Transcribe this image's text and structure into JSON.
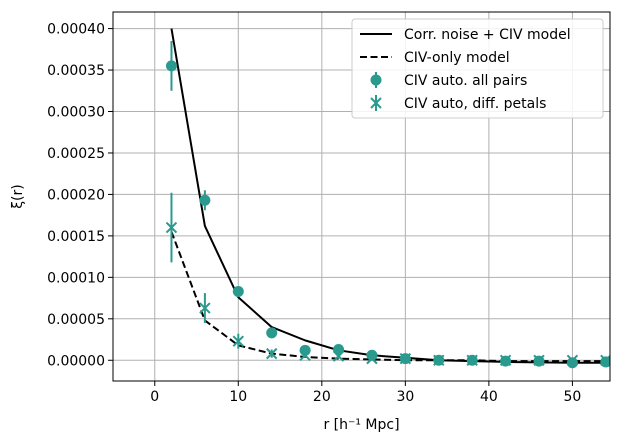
{
  "chart_data": {
    "type": "line",
    "title": "",
    "xlabel": "r [h⁻¹ Mpc]",
    "ylabel": "ξ(r)",
    "xlim": [
      -5,
      54.5
    ],
    "ylim": [
      -2.5e-05,
      0.00042
    ],
    "grid": true,
    "legend_position": "top-right",
    "x_ticks": [
      0,
      10,
      20,
      30,
      40,
      50
    ],
    "x_tick_labels": [
      "0",
      "10",
      "20",
      "30",
      "40",
      "50"
    ],
    "y_ticks": [
      0,
      5e-05,
      0.0001,
      0.00015,
      0.0002,
      0.00025,
      0.0003,
      0.00035,
      0.0004
    ],
    "y_tick_labels": [
      "0.00000",
      "0.00005",
      "0.00010",
      "0.00015",
      "0.00020",
      "0.00025",
      "0.00030",
      "0.00035",
      "0.00040"
    ],
    "colors": {
      "model": "#000000",
      "points": "#2a9a8e",
      "grid": "#b0b0b0"
    },
    "series": [
      {
        "name": "Corr. noise + CIV model",
        "kind": "line",
        "style": "solid",
        "x": [
          2,
          6,
          10,
          14,
          18,
          22,
          26,
          30,
          34,
          38,
          42,
          46,
          50,
          54
        ],
        "y": [
          0.0004,
          0.000162,
          7.6e-05,
          4e-05,
          2.4e-05,
          1.2e-05,
          6e-06,
          3e-06,
          0.0,
          -1e-06,
          -2e-06,
          -2.5e-06,
          -3e-06,
          -3e-06
        ]
      },
      {
        "name": "CIV-only model",
        "kind": "line",
        "style": "dashed",
        "x": [
          2,
          6,
          10,
          14,
          18,
          22,
          26,
          30,
          34,
          38,
          42,
          46,
          50,
          54
        ],
        "y": [
          0.000155,
          4.8e-05,
          1.8e-05,
          8e-06,
          4e-06,
          2e-06,
          1e-06,
          0.0,
          0.0,
          0.0,
          -1e-06,
          -1e-06,
          -1e-06,
          -1e-06
        ]
      },
      {
        "name": "CIV auto. all pairs",
        "kind": "errorbar",
        "marker": "circle",
        "x": [
          2,
          6,
          10,
          14,
          18,
          22,
          26,
          30,
          34,
          38,
          42,
          46,
          50,
          54
        ],
        "y": [
          0.000355,
          0.000193,
          8.3e-05,
          3.3e-05,
          1.2e-05,
          1.3e-05,
          6e-06,
          2e-06,
          0.0,
          0.0,
          -1e-06,
          -1e-06,
          -3e-06,
          -2e-06
        ],
        "err": [
          3e-05,
          1.2e-05,
          6e-06,
          4e-06,
          3e-06,
          3e-06,
          2e-06,
          2e-06,
          2e-06,
          2e-06,
          2e-06,
          2e-06,
          2e-06,
          2e-06
        ]
      },
      {
        "name": "CIV auto, diff. petals",
        "kind": "errorbar",
        "marker": "x",
        "x": [
          2,
          6,
          10,
          14,
          18,
          22,
          26,
          30,
          34,
          38,
          42,
          46,
          50,
          54
        ],
        "y": [
          0.00016,
          6.3e-05,
          2.3e-05,
          8e-06,
          6e-06,
          5e-06,
          2e-06,
          2e-06,
          0.0,
          0.0,
          0.0,
          0.0,
          0.0,
          0.0
        ],
        "err": [
          4.2e-05,
          1.8e-05,
          9e-06,
          5e-06,
          3e-06,
          3e-06,
          2e-06,
          2e-06,
          2e-06,
          2e-06,
          2e-06,
          2e-06,
          2e-06,
          2e-06
        ]
      }
    ]
  }
}
